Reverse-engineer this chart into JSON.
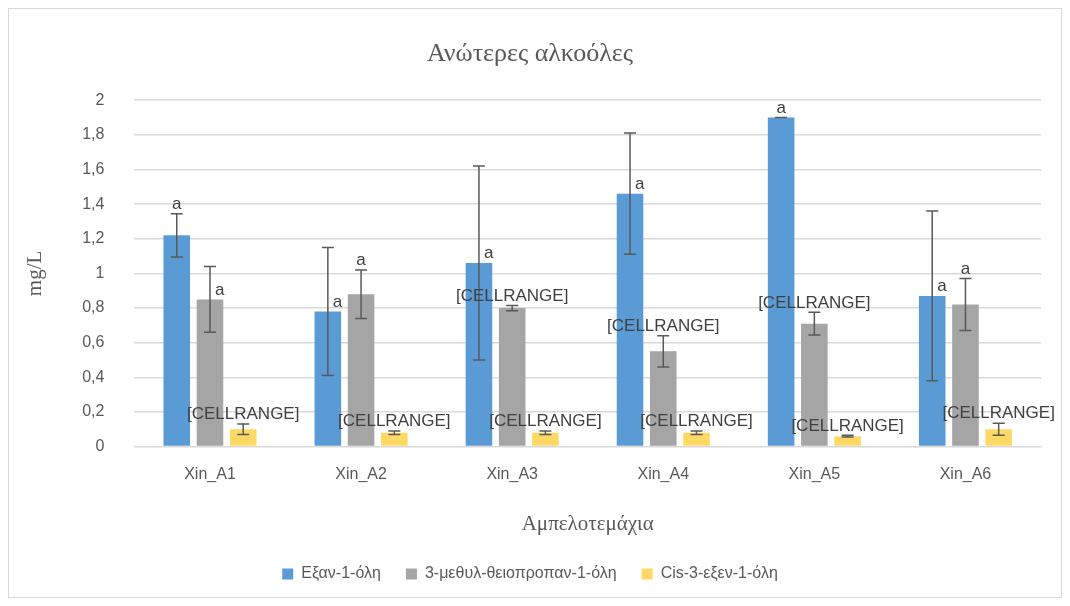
{
  "chart_data": {
    "type": "bar",
    "title": "Ανώτερες αλκοόλες",
    "xlabel": "Αμπελοτεμάχια",
    "ylabel": "mg/L",
    "categories": [
      "Xin_A1",
      "Xin_A2",
      "Xin_A3",
      "Xin_A4",
      "Xin_A5",
      "Xin_A6"
    ],
    "series": [
      {
        "name": "Εξαν-1-όλη",
        "color": "#5b9bd5",
        "values": [
          1.22,
          0.78,
          1.06,
          1.46,
          1.9,
          0.87
        ],
        "errors": [
          0.125,
          0.37,
          0.56,
          0.35,
          0,
          0.49
        ],
        "value_labels": [
          "a",
          "a",
          "a",
          "a",
          "a",
          "a"
        ]
      },
      {
        "name": "3-μεθυλ-θειοπροπαν-1-όλη",
        "color": "#a5a5a5",
        "values": [
          0.85,
          0.88,
          0.8,
          0.55,
          0.71,
          0.82
        ],
        "errors": [
          0.19,
          0.14,
          0.015,
          0.09,
          0.065,
          0.15
        ],
        "value_labels": [
          "a",
          "a",
          "[CELLRANGE]",
          "[CELLRANGE]",
          "[CELLRANGE]",
          "a"
        ]
      },
      {
        "name": "Cis-3-εξεν-1-όλη",
        "color": "#ffd966",
        "values": [
          0.1,
          0.08,
          0.08,
          0.08,
          0.06,
          0.1
        ],
        "errors": [
          0.03,
          0.01,
          0.01,
          0.01,
          0.005,
          0.035
        ],
        "value_labels": [
          "[CELLRANGE]",
          "[CELLRANGE]",
          "[CELLRANGE]",
          "[CELLRANGE]",
          "[CELLRANGE]",
          "[CELLRANGE]"
        ]
      }
    ],
    "ylim": [
      0,
      2
    ],
    "yticks": [
      {
        "value": 0,
        "label": "0"
      },
      {
        "value": 0.2,
        "label": "0,2"
      },
      {
        "value": 0.4,
        "label": "0,4"
      },
      {
        "value": 0.6,
        "label": "0,6"
      },
      {
        "value": 0.8,
        "label": "0,8"
      },
      {
        "value": 1,
        "label": "1"
      },
      {
        "value": 1.2,
        "label": "1,2"
      },
      {
        "value": 1.4,
        "label": "1,4"
      },
      {
        "value": 1.6,
        "label": "1,6"
      },
      {
        "value": 1.8,
        "label": "1,8"
      },
      {
        "value": 2,
        "label": "2"
      }
    ],
    "grid": "y",
    "legend": "bottom"
  }
}
